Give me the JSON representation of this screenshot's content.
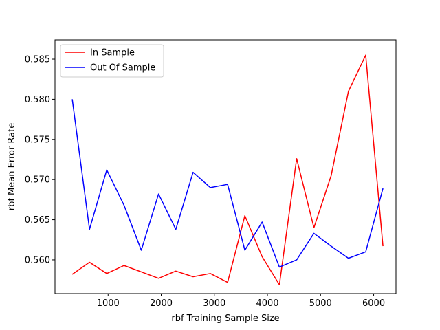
{
  "chart_data": {
    "type": "line",
    "title": "",
    "xlabel": "rbf Training Sample Size",
    "ylabel": "rbf Mean Error Rate",
    "xlim": [
      0,
      6420
    ],
    "ylim": [
      0.5558,
      0.5874
    ],
    "x_ticks": [
      1000,
      2000,
      3000,
      4000,
      5000,
      6000
    ],
    "x_tick_labels": [
      "1000",
      "2000",
      "3000",
      "4000",
      "5000",
      "6000"
    ],
    "y_ticks": [
      0.56,
      0.565,
      0.57,
      0.575,
      0.58,
      0.585
    ],
    "y_tick_labels": [
      "0.560",
      "0.565",
      "0.570",
      "0.575",
      "0.580",
      "0.585"
    ],
    "grid": false,
    "legend_position": "top-left",
    "x": [
      325,
      650,
      975,
      1300,
      1625,
      1950,
      2275,
      2600,
      2925,
      3250,
      3575,
      3900,
      4225,
      4550,
      4875,
      5200,
      5525,
      5850,
      6175
    ],
    "series": [
      {
        "name": "In Sample",
        "color": "#ff0000",
        "values": [
          0.5582,
          0.5597,
          0.5583,
          0.5593,
          0.5585,
          0.5577,
          0.5586,
          0.5579,
          0.5583,
          0.5572,
          0.5655,
          0.5604,
          0.5569,
          0.5726,
          0.564,
          0.5705,
          0.581,
          0.5855,
          0.5617
        ]
      },
      {
        "name": "Out Of Sample",
        "color": "#0000ff",
        "values": [
          0.58,
          0.5638,
          0.5712,
          0.5668,
          0.5612,
          0.5682,
          0.5638,
          0.5709,
          0.569,
          0.5694,
          0.5612,
          0.5647,
          0.5591,
          0.56,
          0.5633,
          0.5617,
          0.5602,
          0.561,
          0.5689
        ]
      }
    ]
  }
}
